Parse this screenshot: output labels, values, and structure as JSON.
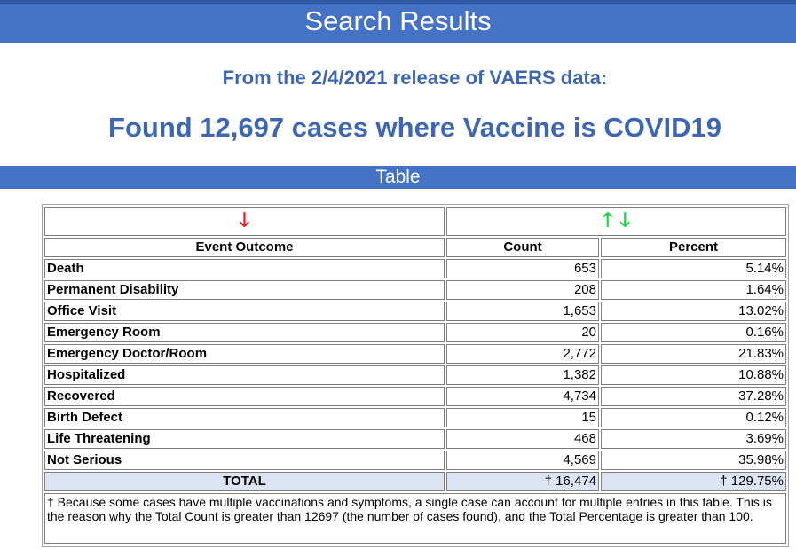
{
  "banner": {
    "title": "Search Results"
  },
  "release_line": "From the 2/4/2021 release of VAERS data:",
  "found_line": "Found 12,697 cases where Vaccine is COVID19",
  "section": {
    "title": "Table"
  },
  "sort_icons": {
    "outcome_sort": "down-arrow-icon",
    "count_sort_up": "up-arrow-icon",
    "count_sort_down": "down-arrow-icon",
    "colors": {
      "active": "#ee1111",
      "inactive": "#11dd33"
    }
  },
  "table": {
    "headers": {
      "outcome": "Event Outcome",
      "count": "Count",
      "percent": "Percent"
    },
    "rows": [
      {
        "outcome": "Death",
        "count": "653",
        "percent": "5.14%"
      },
      {
        "outcome": "Permanent Disability",
        "count": "208",
        "percent": "1.64%"
      },
      {
        "outcome": "Office Visit",
        "count": "1,653",
        "percent": "13.02%"
      },
      {
        "outcome": "Emergency Room",
        "count": "20",
        "percent": "0.16%"
      },
      {
        "outcome": "Emergency Doctor/Room",
        "count": "2,772",
        "percent": "21.83%"
      },
      {
        "outcome": "Hospitalized",
        "count": "1,382",
        "percent": "10.88%"
      },
      {
        "outcome": "Recovered",
        "count": "4,734",
        "percent": "37.28%"
      },
      {
        "outcome": "Birth Defect",
        "count": "15",
        "percent": "0.12%"
      },
      {
        "outcome": "Life Threatening",
        "count": "468",
        "percent": "3.69%"
      },
      {
        "outcome": "Not Serious",
        "count": "4,569",
        "percent": "35.98%"
      }
    ],
    "total": {
      "label": "TOTAL",
      "count": "† 16,474",
      "percent": "† 129.75%"
    },
    "footnote": "† Because some cases have multiple vaccinations and symptoms, a single case can account for multiple entries in this table. This is the reason why the Total Count is greater than 12697 (the number of cases found), and the Total Percentage is greater than 100."
  },
  "colors": {
    "banner": "#4472c4",
    "heading_text": "#3e67b1",
    "total_row": "#dde4f4"
  }
}
